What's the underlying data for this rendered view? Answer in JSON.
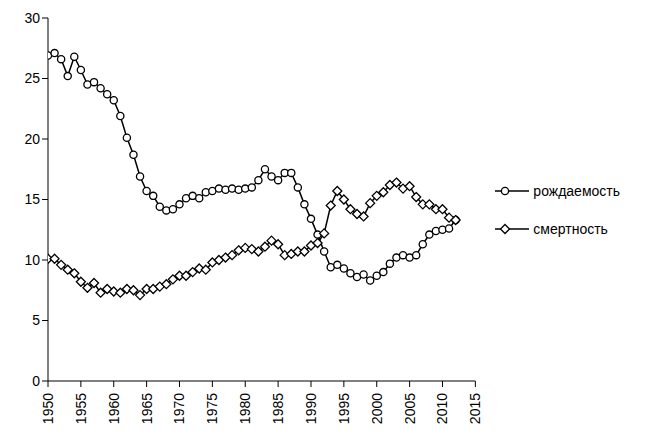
{
  "chart_data": {
    "type": "line",
    "x": [
      1950,
      1951,
      1952,
      1953,
      1954,
      1955,
      1956,
      1957,
      1958,
      1959,
      1960,
      1961,
      1962,
      1963,
      1964,
      1965,
      1966,
      1967,
      1968,
      1969,
      1970,
      1971,
      1972,
      1973,
      1974,
      1975,
      1976,
      1977,
      1978,
      1979,
      1980,
      1981,
      1982,
      1983,
      1984,
      1985,
      1986,
      1987,
      1988,
      1989,
      1990,
      1991,
      1992,
      1993,
      1994,
      1995,
      1996,
      1997,
      1998,
      1999,
      2000,
      2001,
      2002,
      2003,
      2004,
      2005,
      2006,
      2007,
      2008,
      2009,
      2010,
      2011,
      2012
    ],
    "series": [
      {
        "name": "рождаемость",
        "color": "#000000",
        "marker": "circle",
        "line_style": "solid",
        "values": [
          26.9,
          27.1,
          26.6,
          25.2,
          26.8,
          25.7,
          24.5,
          24.7,
          24.2,
          23.7,
          23.2,
          21.9,
          20.1,
          18.7,
          16.9,
          15.7,
          15.3,
          14.4,
          14.1,
          14.2,
          14.6,
          15.1,
          15.3,
          15.1,
          15.6,
          15.7,
          15.9,
          15.8,
          15.9,
          15.8,
          15.9,
          16.0,
          16.6,
          17.5,
          16.9,
          16.6,
          17.2,
          17.2,
          16.0,
          14.6,
          13.4,
          12.1,
          10.7,
          9.4,
          9.6,
          9.3,
          8.9,
          8.6,
          8.8,
          8.3,
          8.7,
          9.0,
          9.7,
          10.2,
          10.4,
          10.2,
          10.4,
          11.3,
          12.1,
          12.4,
          12.5,
          12.6,
          13.3
        ]
      },
      {
        "name": "смертность",
        "color": "#000000",
        "marker": "diamond",
        "line_style": "solid",
        "values": [
          10.1,
          10.1,
          9.6,
          9.2,
          8.9,
          8.2,
          7.7,
          8.1,
          7.3,
          7.6,
          7.4,
          7.3,
          7.6,
          7.5,
          7.1,
          7.6,
          7.6,
          7.8,
          8.0,
          8.4,
          8.7,
          8.7,
          9.0,
          9.3,
          9.2,
          9.8,
          10.0,
          10.2,
          10.4,
          10.8,
          11.0,
          10.9,
          10.7,
          11.1,
          11.6,
          11.3,
          10.4,
          10.5,
          10.7,
          10.7,
          11.2,
          11.4,
          12.2,
          14.5,
          15.7,
          15.0,
          14.2,
          13.8,
          13.6,
          14.7,
          15.3,
          15.6,
          16.2,
          16.4,
          15.9,
          16.1,
          15.2,
          14.6,
          14.6,
          14.2,
          14.2,
          13.5,
          13.3
        ]
      }
    ],
    "xlim": [
      1950,
      2015
    ],
    "xticks": [
      1950,
      1955,
      1960,
      1965,
      1970,
      1975,
      1980,
      1985,
      1990,
      1995,
      2000,
      2005,
      2010,
      2015
    ],
    "ylim": [
      0,
      30
    ],
    "yticks": [
      0,
      5,
      10,
      15,
      20,
      25,
      30
    ],
    "grid": false,
    "legend": "right"
  }
}
